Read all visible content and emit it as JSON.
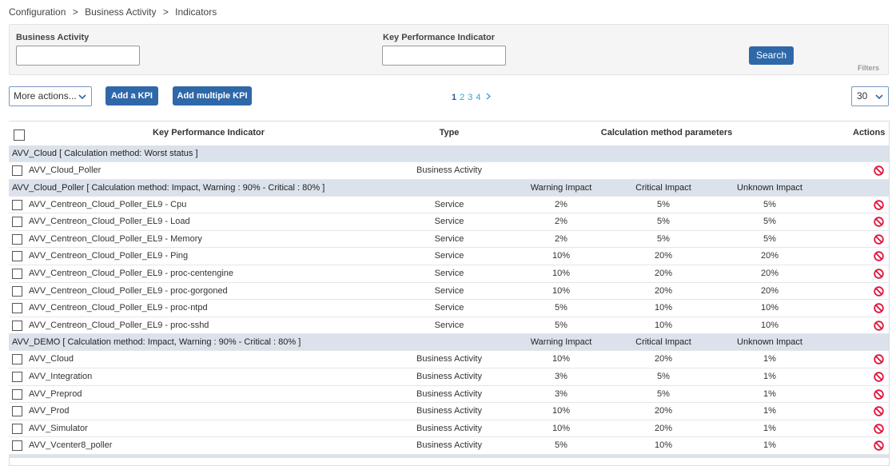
{
  "breadcrumb": {
    "items": [
      "Configuration",
      "Business Activity",
      "Indicators"
    ],
    "separator": ">"
  },
  "filters": {
    "fields": [
      {
        "label": "Business Activity"
      },
      {
        "label": "Key Performance Indicator"
      }
    ],
    "search": "Search",
    "label": "Filters"
  },
  "toolbar": {
    "more_actions": "More actions...",
    "add_kpi": "Add a KPI",
    "add_multiple": "Add multiple KPI",
    "pages": [
      1,
      2,
      3,
      4
    ],
    "per_page": 30
  },
  "table": {
    "header": [
      "Key Performance Indicator",
      "Type",
      "Calculation method parameters",
      "Actions"
    ],
    "groups": [
      {
        "title": "AVV_Cloud [ Calculation method: Worst status ]",
        "rows": [
          {
            "name": "AVV_Cloud_Poller",
            "type": "Business Activity"
          }
        ]
      },
      {
        "title": "AVV_Cloud_Poller [ Calculation method: Impact, Warning : 90% - Critical : 80% ]",
        "columns": [
          "Warning Impact",
          "Critical Impact",
          "Unknown Impact"
        ],
        "rows": [
          {
            "name": "AVV_Centreon_Cloud_Poller_EL9 - Cpu",
            "type": "Service",
            "impacts": [
              "2%",
              "5%",
              "5%"
            ]
          },
          {
            "name": "AVV_Centreon_Cloud_Poller_EL9 - Load",
            "type": "Service",
            "impacts": [
              "2%",
              "5%",
              "5%"
            ]
          },
          {
            "name": "AVV_Centreon_Cloud_Poller_EL9 - Memory",
            "type": "Service",
            "impacts": [
              "2%",
              "5%",
              "5%"
            ]
          },
          {
            "name": "AVV_Centreon_Cloud_Poller_EL9 - Ping",
            "type": "Service",
            "impacts": [
              "10%",
              "20%",
              "20%"
            ]
          },
          {
            "name": "AVV_Centreon_Cloud_Poller_EL9 - proc-centengine",
            "type": "Service",
            "impacts": [
              "10%",
              "20%",
              "20%"
            ]
          },
          {
            "name": "AVV_Centreon_Cloud_Poller_EL9 - proc-gorgoned",
            "type": "Service",
            "impacts": [
              "10%",
              "20%",
              "20%"
            ]
          },
          {
            "name": "AVV_Centreon_Cloud_Poller_EL9 - proc-ntpd",
            "type": "Service",
            "impacts": [
              "5%",
              "10%",
              "10%"
            ]
          },
          {
            "name": "AVV_Centreon_Cloud_Poller_EL9 - proc-sshd",
            "type": "Service",
            "impacts": [
              "5%",
              "10%",
              "10%"
            ]
          }
        ]
      },
      {
        "title": "AVV_DEMO [ Calculation method: Impact, Warning : 90% - Critical : 80% ]",
        "columns": [
          "Warning Impact",
          "Critical Impact",
          "Unknown Impact"
        ],
        "rows": [
          {
            "name": "AVV_Cloud",
            "type": "Business Activity",
            "impacts": [
              "10%",
              "20%",
              "1%"
            ]
          },
          {
            "name": "AVV_Integration",
            "type": "Business Activity",
            "impacts": [
              "3%",
              "5%",
              "1%"
            ]
          },
          {
            "name": "AVV_Preprod",
            "type": "Business Activity",
            "impacts": [
              "3%",
              "5%",
              "1%"
            ]
          },
          {
            "name": "AVV_Prod",
            "type": "Business Activity",
            "impacts": [
              "10%",
              "20%",
              "1%"
            ]
          },
          {
            "name": "AVV_Simulator",
            "type": "Business Activity",
            "impacts": [
              "10%",
              "20%",
              "1%"
            ]
          },
          {
            "name": "AVV_Vcenter8_poller",
            "type": "Business Activity",
            "impacts": [
              "5%",
              "10%",
              "1%"
            ]
          }
        ]
      }
    ]
  }
}
